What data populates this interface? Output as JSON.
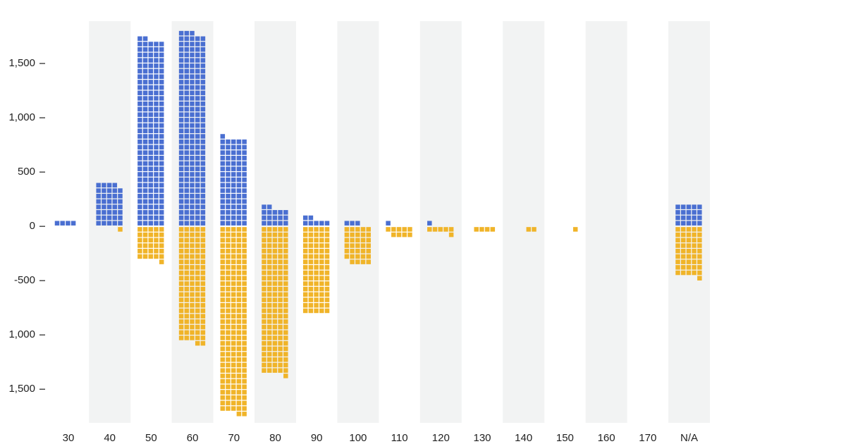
{
  "chart_data": {
    "type": "waffle-diverging",
    "categories": [
      "30",
      "40",
      "50",
      "60",
      "70",
      "80",
      "90",
      "100",
      "110",
      "120",
      "130",
      "140",
      "150",
      "160",
      "170",
      "N/A"
    ],
    "series": [
      {
        "color": "#4a6fd1",
        "values": [
          35,
          390,
          1715,
          1780,
          814,
          174,
          66,
          26,
          12,
          12,
          3,
          0,
          1,
          0,
          0,
          200
        ]
      },
      {
        "color": "#f0b429",
        "values": [
          0,
          -10,
          -308,
          -1074,
          -1720,
          -1362,
          -804,
          -336,
          -94,
          -60,
          -36,
          -16,
          -9,
          -3,
          -2,
          -460
        ]
      }
    ],
    "ylim": [
      -1810,
      1890
    ],
    "yticks": [
      {
        "value": -1500,
        "label": "1,500"
      },
      {
        "value": -1000,
        "label": "1,000"
      },
      -500,
      0,
      500,
      {
        "value": 1000,
        "label": "1,000"
      },
      {
        "value": 1500,
        "label": "1,500"
      }
    ],
    "alternate_bands": true
  }
}
